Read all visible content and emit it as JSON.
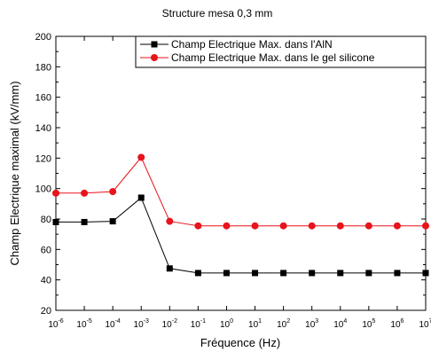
{
  "chart_data": {
    "type": "line",
    "title": "Structure mesa 0,3 mm",
    "xlabel": "Fréquence (Hz)",
    "ylabel": "Champ Electrique maximal (kV/mm)",
    "x_scale": "log",
    "x_exponents": [
      -6,
      -5,
      -4,
      -3,
      -2,
      -1,
      0,
      1,
      2,
      3,
      4,
      5,
      6,
      7
    ],
    "x_tick_base": "10",
    "xlim_exponent": [
      -6,
      7
    ],
    "ylim": [
      20,
      200
    ],
    "y_ticks": [
      "20",
      "40",
      "60",
      "80",
      "100",
      "120",
      "140",
      "160",
      "180",
      "200"
    ],
    "legend_position": "top-right",
    "grid": false,
    "series": [
      {
        "name": "Champ Electrique Max. dans l'AlN",
        "color": "#000000",
        "marker": "square",
        "values": [
          78,
          78,
          78.5,
          94,
          47.5,
          44.5,
          44.5,
          44.5,
          44.5,
          44.5,
          44.5,
          44.5,
          44.5,
          44.5
        ]
      },
      {
        "name": "Champ Electrique Max. dans le gel silicone",
        "color": "#e8131b",
        "marker": "circle",
        "values": [
          97,
          97,
          98,
          120.5,
          78.5,
          75.5,
          75.5,
          75.5,
          75.5,
          75.5,
          75.5,
          75.5,
          75.5,
          75.5
        ]
      }
    ]
  }
}
